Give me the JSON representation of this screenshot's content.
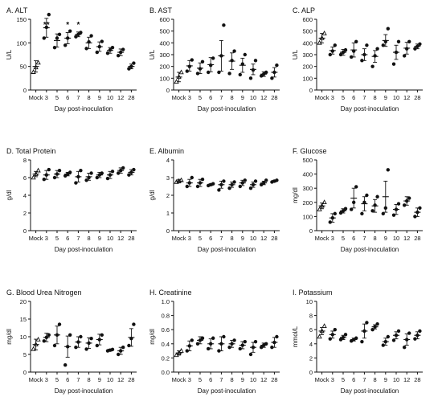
{
  "colors": {
    "ink": "#111111"
  },
  "chart_data": [
    {
      "type": "scatter",
      "panel_title": "A. ALT",
      "ylabel": "U/L",
      "xlabel": "Day post-inoculation",
      "categories": [
        "Mock",
        "3",
        "5",
        "6",
        "7",
        "8",
        "9",
        "10",
        "12",
        "28"
      ],
      "yticks": [
        "0",
        "50",
        "100",
        "150"
      ],
      "ylim": [
        0,
        150
      ],
      "means": [
        50,
        132,
        105,
        110,
        118,
        100,
        92,
        84,
        80,
        50
      ],
      "sem": [
        12,
        20,
        14,
        12,
        5,
        12,
        10,
        6,
        7,
        5
      ],
      "points": [
        [
          38,
          48,
          58
        ],
        [
          110,
          133,
          160
        ],
        [
          90,
          110,
          118
        ],
        [
          95,
          110,
          125
        ],
        [
          113,
          118,
          122
        ],
        [
          88,
          102,
          115
        ],
        [
          80,
          92,
          103
        ],
        [
          78,
          85,
          90
        ],
        [
          73,
          80,
          86
        ],
        [
          45,
          50,
          57
        ]
      ],
      "annotations": [
        {
          "category": "3",
          "text": "**"
        },
        {
          "category": "6",
          "text": "*"
        },
        {
          "category": "7",
          "text": "*"
        }
      ]
    },
    {
      "type": "scatter",
      "panel_title": "B. AST",
      "ylabel": "U/L",
      "xlabel": "Day post-inoculation",
      "categories": [
        "Mock",
        "3",
        "5",
        "6",
        "7",
        "8",
        "9",
        "10",
        "12",
        "28"
      ],
      "yticks": [
        "0",
        "100",
        "200",
        "300",
        "400",
        "500",
        "600"
      ],
      "ylim": [
        0,
        600
      ],
      "means": [
        110,
        205,
        185,
        215,
        290,
        245,
        210,
        175,
        135,
        150
      ],
      "sem": [
        40,
        45,
        45,
        60,
        130,
        70,
        60,
        45,
        20,
        40
      ],
      "points": [
        [
          70,
          110,
          150
        ],
        [
          160,
          200,
          255
        ],
        [
          140,
          180,
          240
        ],
        [
          150,
          210,
          270
        ],
        [
          150,
          290,
          550
        ],
        [
          140,
          250,
          330
        ],
        [
          130,
          220,
          300
        ],
        [
          100,
          170,
          250
        ],
        [
          120,
          135,
          150
        ],
        [
          100,
          150,
          210
        ]
      ],
      "annotations": []
    },
    {
      "type": "scatter",
      "panel_title": "C. ALP",
      "ylabel": "U/L",
      "xlabel": "Day post-inoculation",
      "categories": [
        "Mock",
        "3",
        "5",
        "6",
        "7",
        "8",
        "9",
        "10",
        "12",
        "28"
      ],
      "yticks": [
        "0",
        "100",
        "200",
        "300",
        "400",
        "500",
        "600"
      ],
      "ylim": [
        0,
        600
      ],
      "means": [
        440,
        335,
        320,
        340,
        300,
        285,
        420,
        320,
        355,
        370
      ],
      "sem": [
        40,
        30,
        25,
        60,
        50,
        50,
        50,
        60,
        50,
        20
      ],
      "points": [
        [
          400,
          440,
          480
        ],
        [
          300,
          330,
          380
        ],
        [
          300,
          320,
          340
        ],
        [
          280,
          330,
          410
        ],
        [
          250,
          300,
          380
        ],
        [
          200,
          290,
          350
        ],
        [
          380,
          410,
          520
        ],
        [
          220,
          320,
          410
        ],
        [
          290,
          350,
          410
        ],
        [
          350,
          370,
          390
        ]
      ],
      "annotations": []
    },
    {
      "type": "scatter",
      "panel_title": "D. Total Protein",
      "ylabel": "g/dl",
      "xlabel": "Day post-inoculation",
      "categories": [
        "Mock",
        "3",
        "5",
        "6",
        "7",
        "8",
        "9",
        "10",
        "12",
        "28"
      ],
      "yticks": [
        "0",
        "2",
        "4",
        "6",
        "8"
      ],
      "ylim": [
        0,
        8
      ],
      "means": [
        6.4,
        6.3,
        6.4,
        6.4,
        6.1,
        6.1,
        6.3,
        6.3,
        6.8,
        6.6
      ],
      "sem": [
        0.3,
        0.5,
        0.4,
        0.2,
        0.6,
        0.4,
        0.3,
        0.4,
        0.3,
        0.3
      ],
      "points": [
        [
          6.0,
          6.4,
          6.8
        ],
        [
          5.8,
          6.3,
          6.9
        ],
        [
          6.0,
          6.4,
          6.8
        ],
        [
          6.2,
          6.4,
          6.6
        ],
        [
          5.4,
          6.1,
          6.8
        ],
        [
          5.7,
          6.0,
          6.5
        ],
        [
          6.0,
          6.3,
          6.5
        ],
        [
          5.9,
          6.3,
          6.7
        ],
        [
          6.5,
          6.8,
          7.1
        ],
        [
          6.3,
          6.6,
          6.9
        ]
      ],
      "annotations": []
    },
    {
      "type": "scatter",
      "panel_title": "E. Albumin",
      "ylabel": "g/dl",
      "xlabel": "Day post-inoculation",
      "categories": [
        "Mock",
        "3",
        "5",
        "6",
        "7",
        "8",
        "9",
        "10",
        "12",
        "28"
      ],
      "yticks": [
        "0",
        "1",
        "2",
        "3",
        "4"
      ],
      "ylim": [
        0,
        4
      ],
      "means": [
        2.8,
        2.7,
        2.7,
        2.6,
        2.6,
        2.6,
        2.7,
        2.6,
        2.7,
        2.8
      ],
      "sem": [
        0.1,
        0.2,
        0.2,
        0.05,
        0.2,
        0.15,
        0.15,
        0.15,
        0.1,
        0.05
      ],
      "points": [
        [
          2.75,
          2.8,
          2.85
        ],
        [
          2.5,
          2.7,
          3.0
        ],
        [
          2.5,
          2.7,
          2.9
        ],
        [
          2.55,
          2.6,
          2.65
        ],
        [
          2.3,
          2.6,
          2.8
        ],
        [
          2.4,
          2.6,
          2.75
        ],
        [
          2.5,
          2.7,
          2.85
        ],
        [
          2.4,
          2.6,
          2.8
        ],
        [
          2.6,
          2.7,
          2.85
        ],
        [
          2.75,
          2.8,
          2.85
        ]
      ],
      "annotations": []
    },
    {
      "type": "scatter",
      "panel_title": "F. Glucose",
      "ylabel": "mg/dl",
      "xlabel": "Day post-inoculation",
      "categories": [
        "Mock",
        "3",
        "5",
        "6",
        "7",
        "8",
        "9",
        "10",
        "12",
        "28"
      ],
      "yticks": [
        "0",
        "100",
        "200",
        "300",
        "400",
        "500"
      ],
      "ylim": [
        0,
        500
      ],
      "means": [
        175,
        90,
        140,
        230,
        190,
        175,
        240,
        150,
        210,
        130
      ],
      "sem": [
        20,
        30,
        15,
        70,
        50,
        45,
        110,
        35,
        30,
        30
      ],
      "points": [
        [
          150,
          175,
          200
        ],
        [
          60,
          90,
          120
        ],
        [
          125,
          140,
          155
        ],
        [
          150,
          200,
          310
        ],
        [
          120,
          200,
          250
        ],
        [
          140,
          180,
          240
        ],
        [
          120,
          160,
          430
        ],
        [
          110,
          150,
          190
        ],
        [
          180,
          210,
          230
        ],
        [
          100,
          130,
          160
        ]
      ],
      "annotations": []
    },
    {
      "type": "scatter",
      "panel_title": "G. Blood Urea Nitrogen",
      "ylabel": "mg/dl",
      "xlabel": "Day post-inoculation",
      "categories": [
        "Mock",
        "3",
        "5",
        "6",
        "7",
        "8",
        "9",
        "10",
        "12",
        "28"
      ],
      "yticks": [
        "0",
        "5",
        "10",
        "15",
        "20"
      ],
      "ylim": [
        0,
        20
      ],
      "means": [
        7.8,
        9.8,
        10.5,
        7.2,
        8.5,
        8.2,
        9.2,
        6.2,
        6.0,
        9.8
      ],
      "sem": [
        1.5,
        1.2,
        2.5,
        3.0,
        1.5,
        1.5,
        1.5,
        0.3,
        1.0,
        2.5
      ],
      "points": [
        [
          6.5,
          7.8,
          9.2
        ],
        [
          8.8,
          9.8,
          10.5
        ],
        [
          7.5,
          10.5,
          13.5
        ],
        [
          2.0,
          7.2,
          10.5
        ],
        [
          7.0,
          8.5,
          10.0
        ],
        [
          6.5,
          8.2,
          9.5
        ],
        [
          7.5,
          9.2,
          10.5
        ],
        [
          6.0,
          6.2,
          6.4
        ],
        [
          5.0,
          6.0,
          7.0
        ],
        [
          7.5,
          9.5,
          13.5
        ]
      ],
      "annotations": []
    },
    {
      "type": "scatter",
      "panel_title": "H. Creatinine",
      "ylabel": "mg/dl",
      "xlabel": "Day post-inoculation",
      "categories": [
        "Mock",
        "3",
        "5",
        "6",
        "7",
        "8",
        "9",
        "10",
        "12",
        "28"
      ],
      "yticks": [
        "0.0",
        "0.2",
        "0.4",
        "0.6",
        "0.8",
        "1.0"
      ],
      "ylim": [
        0,
        1
      ],
      "means": [
        0.27,
        0.37,
        0.45,
        0.4,
        0.4,
        0.4,
        0.38,
        0.35,
        0.38,
        0.42
      ],
      "sem": [
        0.03,
        0.07,
        0.05,
        0.07,
        0.1,
        0.05,
        0.05,
        0.07,
        0.03,
        0.07
      ],
      "points": [
        [
          0.24,
          0.27,
          0.3
        ],
        [
          0.3,
          0.37,
          0.45
        ],
        [
          0.4,
          0.45,
          0.48
        ],
        [
          0.33,
          0.4,
          0.48
        ],
        [
          0.3,
          0.4,
          0.5
        ],
        [
          0.35,
          0.4,
          0.45
        ],
        [
          0.33,
          0.38,
          0.43
        ],
        [
          0.25,
          0.35,
          0.43
        ],
        [
          0.35,
          0.38,
          0.4
        ],
        [
          0.35,
          0.42,
          0.5
        ]
      ],
      "annotations": []
    },
    {
      "type": "scatter",
      "panel_title": "I. Potassium",
      "ylabel": "mmol/L",
      "xlabel": "Day post-inoculation",
      "categories": [
        "Mock",
        "3",
        "5",
        "6",
        "7",
        "8",
        "9",
        "10",
        "12",
        "28"
      ],
      "yticks": [
        "0",
        "2",
        "4",
        "6",
        "8",
        "10"
      ],
      "ylim": [
        0,
        10
      ],
      "means": [
        5.8,
        5.3,
        4.9,
        4.6,
        5.8,
        6.4,
        4.3,
        5.2,
        4.6,
        5.2
      ],
      "sem": [
        0.5,
        0.5,
        0.3,
        0.2,
        1.0,
        0.3,
        0.5,
        0.5,
        0.8,
        0.5
      ],
      "points": [
        [
          5.0,
          5.8,
          6.5
        ],
        [
          4.7,
          5.3,
          6.0
        ],
        [
          4.6,
          4.9,
          5.3
        ],
        [
          4.4,
          4.6,
          4.8
        ],
        [
          4.3,
          5.8,
          7.0
        ],
        [
          6.0,
          6.4,
          6.8
        ],
        [
          3.8,
          4.3,
          5.0
        ],
        [
          4.5,
          5.2,
          5.8
        ],
        [
          3.5,
          4.6,
          5.5
        ],
        [
          4.7,
          5.2,
          5.8
        ]
      ],
      "annotations": []
    }
  ]
}
